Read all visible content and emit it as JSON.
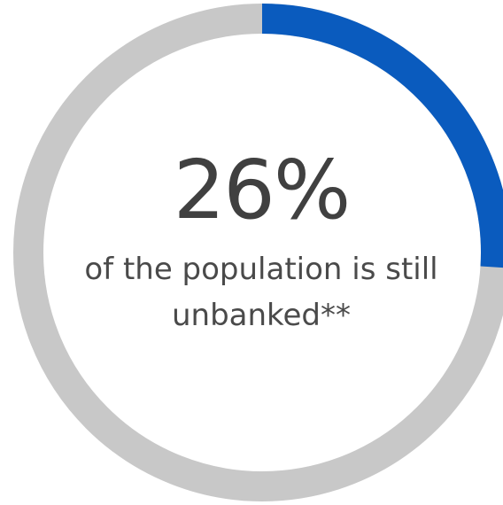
{
  "chart_data": {
    "type": "pie",
    "variant": "donut",
    "value_label": "26%",
    "caption_line1": "of the population is still",
    "caption_line2": "unbanked**",
    "slices": [
      {
        "value": 26,
        "color": "#0a5bbe"
      },
      {
        "value": 74,
        "color": "#c8c8c8"
      }
    ]
  },
  "colors": {
    "accent": "#0a5bbe",
    "track": "#c8c8c8",
    "text": "#404040"
  }
}
